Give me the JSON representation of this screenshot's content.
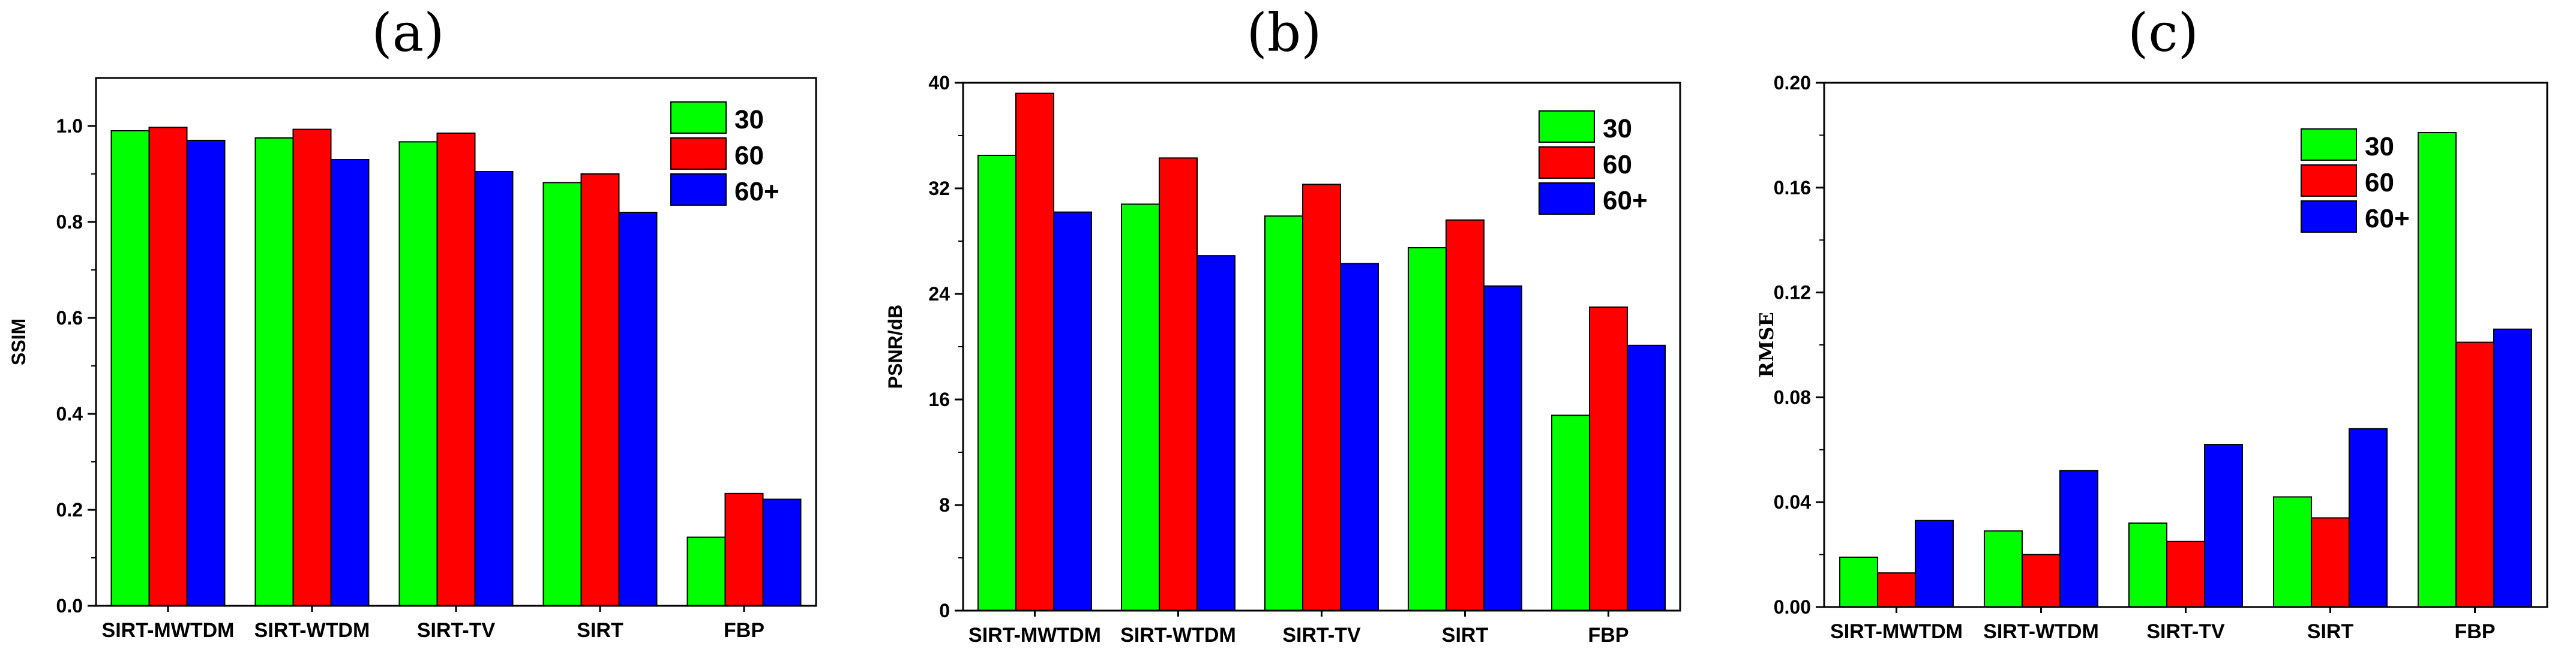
{
  "chart_data": [
    {
      "type": "bar",
      "title": "(a)",
      "ylabel": "SSIM",
      "xlabel": "",
      "categories": [
        "SIRT-MWTDM",
        "SIRT-WTDM",
        "SIRT-TV",
        "SIRT",
        "FBP"
      ],
      "series": [
        {
          "name": "30",
          "color": "#00ff00",
          "values": [
            0.99,
            0.975,
            0.967,
            0.882,
            0.143
          ]
        },
        {
          "name": "60",
          "color": "#ff0000",
          "values": [
            0.997,
            0.993,
            0.985,
            0.9,
            0.234
          ]
        },
        {
          "name": "60+",
          "color": "#0000ff",
          "values": [
            0.97,
            0.93,
            0.905,
            0.82,
            0.222
          ]
        }
      ],
      "ylim": [
        0,
        1.1
      ],
      "yticks": [
        "0.0",
        "0.2",
        "0.4",
        "0.6",
        "0.8",
        "1.0"
      ],
      "ytick_values": [
        0,
        0.2,
        0.4,
        0.6,
        0.8,
        1.0
      ],
      "legend": "top-right"
    },
    {
      "type": "bar",
      "title": "(b)",
      "ylabel": "PSNR/dB",
      "xlabel": "",
      "categories": [
        "SIRT-MWTDM",
        "SIRT-WTDM",
        "SIRT-TV",
        "SIRT",
        "FBP"
      ],
      "series": [
        {
          "name": "30",
          "color": "#00ff00",
          "values": [
            34.5,
            30.8,
            29.9,
            27.5,
            14.8
          ]
        },
        {
          "name": "60",
          "color": "#ff0000",
          "values": [
            39.2,
            34.3,
            32.3,
            29.6,
            23.0
          ]
        },
        {
          "name": "60+",
          "color": "#0000ff",
          "values": [
            30.2,
            26.9,
            26.3,
            24.6,
            20.1
          ]
        }
      ],
      "ylim": [
        0,
        40
      ],
      "yticks": [
        "0",
        "8",
        "16",
        "24",
        "32",
        "40"
      ],
      "ytick_values": [
        0,
        8,
        16,
        24,
        32,
        40
      ],
      "legend": "top-right"
    },
    {
      "type": "bar",
      "title": "(c)",
      "ylabel": "RMSE",
      "xlabel": "",
      "categories": [
        "SIRT-MWTDM",
        "SIRT-WTDM",
        "SIRT-TV",
        "SIRT",
        "FBP"
      ],
      "series": [
        {
          "name": "30",
          "color": "#00ff00",
          "values": [
            0.019,
            0.029,
            0.032,
            0.042,
            0.181
          ]
        },
        {
          "name": "60",
          "color": "#ff0000",
          "values": [
            0.013,
            0.02,
            0.025,
            0.034,
            0.101
          ]
        },
        {
          "name": "60+",
          "color": "#0000ff",
          "values": [
            0.033,
            0.052,
            0.062,
            0.068,
            0.106
          ]
        }
      ],
      "ylim": [
        0,
        0.2
      ],
      "yticks": [
        "0.00",
        "0.04",
        "0.08",
        "0.12",
        "0.16",
        "0.20"
      ],
      "ytick_values": [
        0,
        0.04,
        0.08,
        0.12,
        0.16,
        0.2
      ],
      "legend": "top-right"
    }
  ]
}
